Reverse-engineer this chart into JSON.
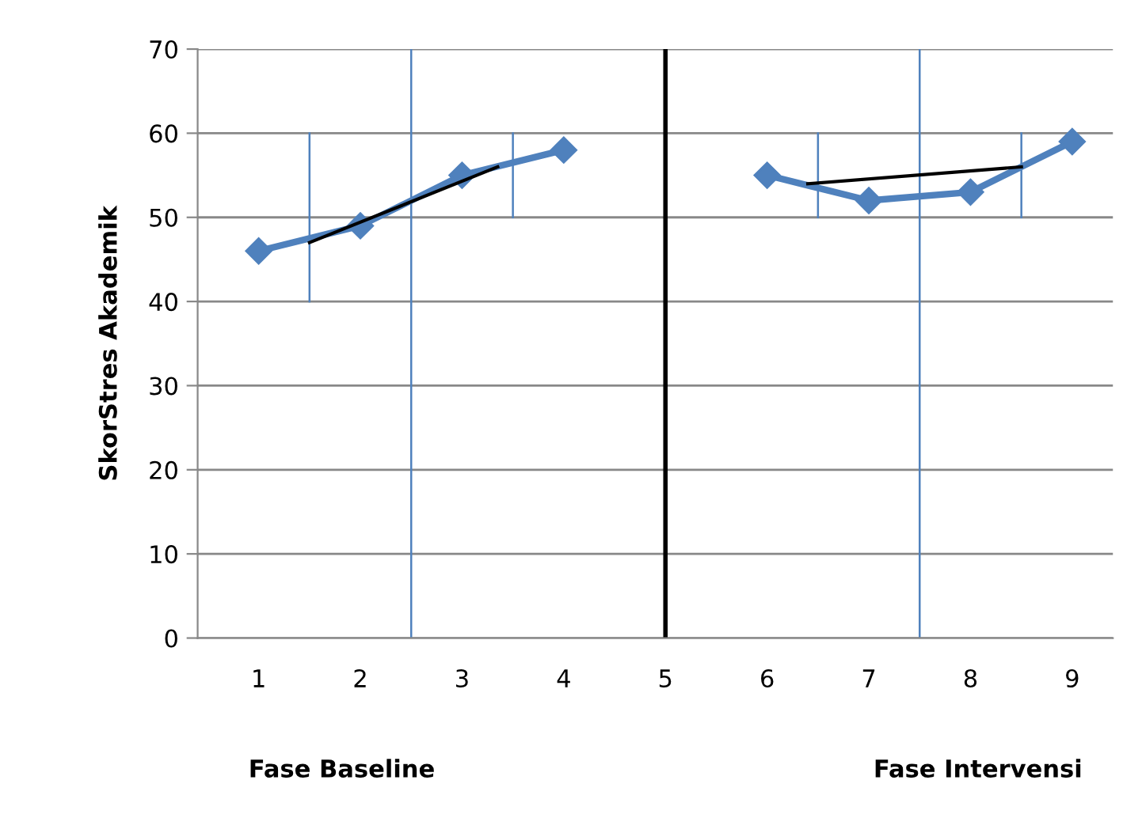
{
  "chart_data": {
    "type": "line",
    "ylabel": "SkorStres Akademik",
    "xlim": [
      0.4,
      9.4
    ],
    "xticks": [
      1,
      2,
      3,
      4,
      5,
      6,
      7,
      8,
      9
    ],
    "ylim": [
      0,
      70
    ],
    "yticks": [
      0,
      10,
      20,
      30,
      40,
      50,
      60,
      70
    ],
    "grid": "y",
    "series": [
      {
        "color": "#4f81bd",
        "x": [
          1,
          2,
          3,
          4,
          5,
          6,
          7,
          8,
          9
        ],
        "values": [
          46,
          49,
          55,
          58,
          null,
          55,
          52,
          53,
          59
        ],
        "marker": "diamond"
      },
      {
        "color": "#000000",
        "x": [
          1.5,
          3.35
        ],
        "values": [
          47,
          56
        ]
      },
      {
        "color": "#000000",
        "x": [
          6.4,
          8.5
        ],
        "values": [
          54,
          56
        ]
      },
      {
        "color": "#4f81bd",
        "x": [
          1.5,
          1.5
        ],
        "values": [
          40,
          60
        ]
      },
      {
        "color": "#4f81bd",
        "x": [
          3.5,
          3.5
        ],
        "values": [
          50,
          60
        ]
      },
      {
        "color": "#4f81bd",
        "x": [
          6.5,
          6.5
        ],
        "values": [
          50,
          60
        ]
      },
      {
        "color": "#4f81bd",
        "x": [
          8.5,
          8.5
        ],
        "values": [
          50,
          60
        ]
      }
    ],
    "ref_lines": [
      {
        "axis": "x",
        "value": 5,
        "color": "#000000"
      },
      {
        "axis": "x",
        "value": 2.5,
        "color": "#4f81bd"
      },
      {
        "axis": "x",
        "value": 7.5,
        "color": "#4f81bd"
      }
    ],
    "annotations": [
      "Fase Baseline",
      "Fase Intervensi"
    ]
  }
}
